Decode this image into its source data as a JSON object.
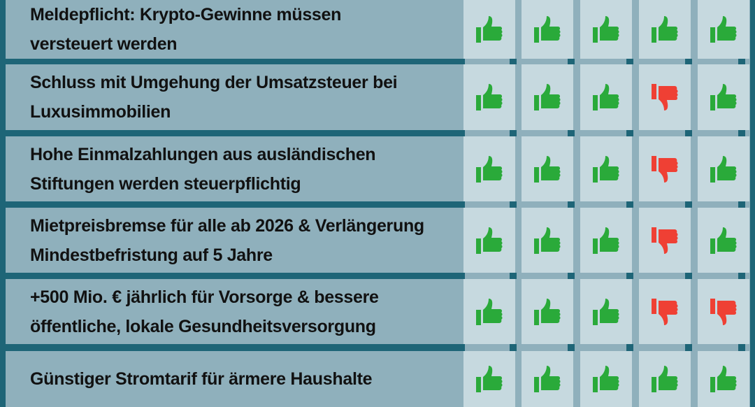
{
  "colors": {
    "up": "#2aaa3a",
    "down": "#ef4034",
    "border": "#1e6577"
  },
  "rows": [
    {
      "text": "Meldepflicht: Krypto-Gewinne müssen\nversteuert werden",
      "votes": [
        "up",
        "up",
        "up",
        "up",
        "up"
      ]
    },
    {
      "text": "Schluss mit Umgehung der Umsatzsteuer bei\nLuxusimmobilien",
      "votes": [
        "up",
        "up",
        "up",
        "down",
        "up"
      ]
    },
    {
      "text": "Hohe Einmalzahlungen aus ausländischen\nStiftungen werden steuerpflichtig",
      "votes": [
        "up",
        "up",
        "up",
        "down",
        "up"
      ]
    },
    {
      "text": "Mietpreisbremse für alle ab 2026 & Verlängerung\nMindestbefristung auf 5 Jahre",
      "votes": [
        "up",
        "up",
        "up",
        "down",
        "up"
      ]
    },
    {
      "text": "+500 Mio. € jährlich für Vorsorge & bessere\nöffentliche, lokale Gesundheitsversorgung",
      "votes": [
        "up",
        "up",
        "up",
        "down",
        "down"
      ]
    },
    {
      "text": "Günstiger Stromtarif für ärmere Haushalte",
      "votes": [
        "up",
        "up",
        "up",
        "up",
        "up"
      ]
    }
  ]
}
